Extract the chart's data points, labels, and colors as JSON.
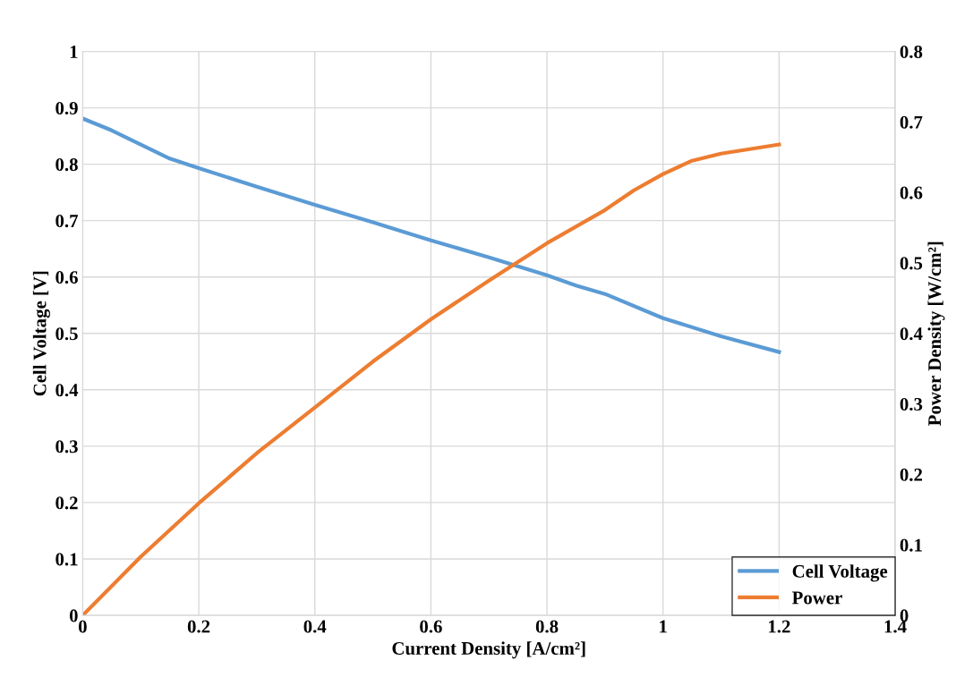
{
  "chart_data": {
    "type": "line",
    "xlabel": "Current Density [A/cm²]",
    "ylabel": "Cell Voltage [V]",
    "y2label": "Power Density [W/cm²]",
    "xlim": [
      0,
      1.4
    ],
    "xticks": [
      0,
      0.2,
      0.4,
      0.6,
      0.8,
      1,
      1.2,
      1.4
    ],
    "ylim": [
      0,
      1
    ],
    "yticks": [
      0,
      0.1,
      0.2,
      0.3,
      0.4,
      0.5,
      0.6,
      0.7,
      0.8,
      0.9,
      1
    ],
    "y2lim": [
      0,
      0.8
    ],
    "y2ticks": [
      0,
      0.1,
      0.2,
      0.3,
      0.4,
      0.5,
      0.6,
      0.7,
      0.8
    ],
    "grid": true,
    "legend": "bottom right",
    "marker": "none",
    "line_style": "solid",
    "series": [
      {
        "name": "Cell Voltage",
        "color": "#5b9bd5",
        "x": [
          0,
          0.05,
          0.1,
          0.15,
          0.2,
          0.3,
          0.4,
          0.5,
          0.6,
          0.7,
          0.8,
          0.85,
          0.9,
          1.0,
          1.1,
          1.2
        ],
        "values": [
          0.881,
          0.86,
          0.835,
          0.81,
          0.793,
          0.76,
          0.728,
          0.697,
          0.665,
          0.635,
          0.603,
          0.585,
          0.57,
          0.527,
          0.495,
          0.467
        ]
      },
      {
        "name": "Power",
        "color": "#ed7d31",
        "axis": "y2",
        "x": [
          0,
          0.1,
          0.2,
          0.3,
          0.4,
          0.5,
          0.6,
          0.7,
          0.8,
          0.9,
          0.95,
          1.0,
          1.05,
          1.1,
          1.2
        ],
        "values": [
          0,
          0.083,
          0.159,
          0.23,
          0.295,
          0.36,
          0.42,
          0.475,
          0.528,
          0.575,
          0.603,
          0.626,
          0.645,
          0.655,
          0.668
        ]
      }
    ]
  }
}
